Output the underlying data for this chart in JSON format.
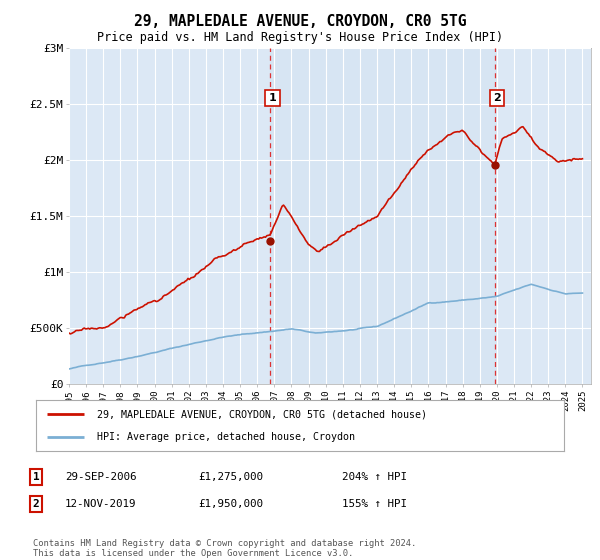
{
  "title": "29, MAPLEDALE AVENUE, CROYDON, CR0 5TG",
  "subtitle": "Price paid vs. HM Land Registry's House Price Index (HPI)",
  "hpi_label": "HPI: Average price, detached house, Croydon",
  "property_label": "29, MAPLEDALE AVENUE, CROYDON, CR0 5TG (detached house)",
  "annotation1": {
    "label": "1",
    "date": "29-SEP-2006",
    "price": "£1,275,000",
    "hpi_pct": "204% ↑ HPI"
  },
  "annotation2": {
    "label": "2",
    "date": "12-NOV-2019",
    "price": "£1,950,000",
    "hpi_pct": "155% ↑ HPI"
  },
  "vline1_x": 2006.75,
  "vline2_x": 2019.87,
  "sale1_y": 1275000,
  "sale2_y": 1950000,
  "ylim": [
    0,
    3000000
  ],
  "xlim_start": 1995.0,
  "xlim_end": 2025.5,
  "background_color": "#ffffff",
  "plot_bg_color": "#dce8f5",
  "grid_color": "#ffffff",
  "hpi_color": "#7bafd4",
  "property_color": "#cc1100",
  "vline_color": "#dd3333",
  "footer": "Contains HM Land Registry data © Crown copyright and database right 2024.\nThis data is licensed under the Open Government Licence v3.0.",
  "yticks": [
    0,
    500000,
    1000000,
    1500000,
    2000000,
    2500000,
    3000000
  ],
  "ytick_labels": [
    "£0",
    "£500K",
    "£1M",
    "£1.5M",
    "£2M",
    "£2.5M",
    "£3M"
  ],
  "xticks": [
    1995,
    1996,
    1997,
    1998,
    1999,
    2000,
    2001,
    2002,
    2003,
    2004,
    2005,
    2006,
    2007,
    2008,
    2009,
    2010,
    2011,
    2012,
    2013,
    2014,
    2015,
    2016,
    2017,
    2018,
    2019,
    2020,
    2021,
    2022,
    2023,
    2024,
    2025
  ]
}
